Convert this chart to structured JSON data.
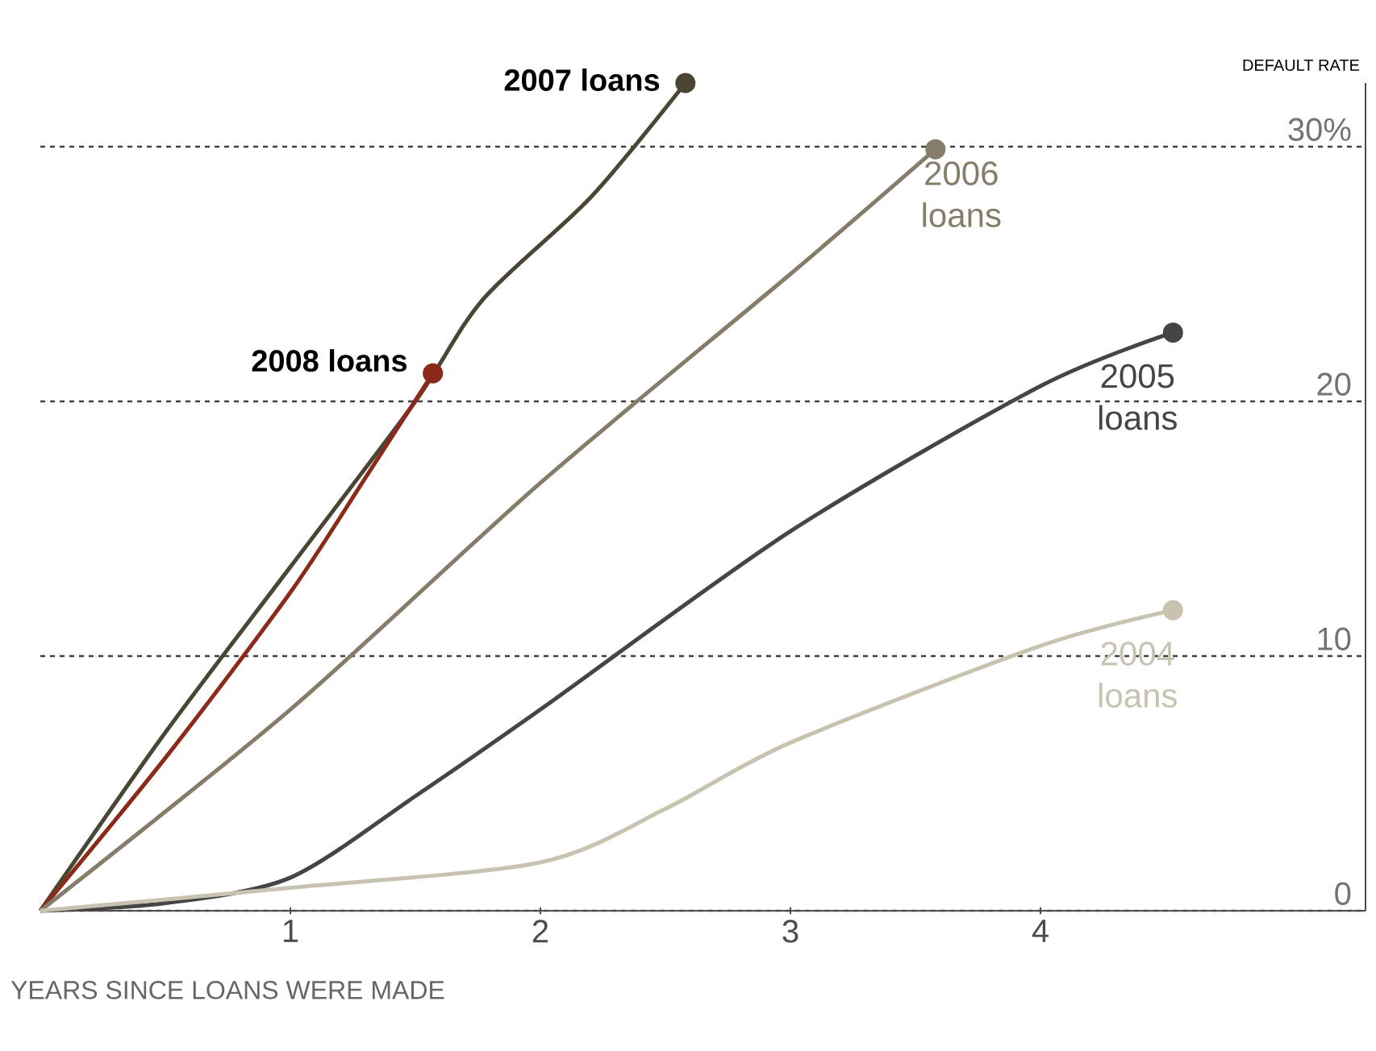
{
  "chart_data": {
    "type": "line",
    "ylabel": "DEFAULT RATE",
    "xlabel": "YEARS SINCE LOANS WERE MADE",
    "xlim": [
      0,
      5.3
    ],
    "ylim": [
      0,
      32.5
    ],
    "xticks": [
      1,
      2,
      3,
      4
    ],
    "yticks": [
      {
        "value": 0,
        "label": "0"
      },
      {
        "value": 10,
        "label": "10"
      },
      {
        "value": 20,
        "label": "20"
      },
      {
        "value": 30,
        "label": "30%"
      }
    ],
    "grid": "y",
    "legend": false,
    "line_style": "solid",
    "series": [
      {
        "name": "2007 loans",
        "color": "#4a4535",
        "x": [
          0,
          0.5,
          1,
          1.5,
          1.77,
          2.2,
          2.58
        ],
        "values": [
          0,
          7,
          13.5,
          20,
          24,
          28,
          32.5
        ]
      },
      {
        "name": "2008 loans",
        "color": "#8b2a1a",
        "x": [
          0,
          0.5,
          1,
          1.3,
          1.57
        ],
        "values": [
          0,
          6,
          12.5,
          17,
          21.1
        ]
      },
      {
        "name": "2006 loans",
        "color": "#857d6a",
        "x": [
          0,
          1,
          2,
          3,
          3.58
        ],
        "values": [
          0,
          7.9,
          16.8,
          25,
          29.9
        ]
      },
      {
        "name": "2005 loans",
        "color": "#454545",
        "x": [
          0,
          0.5,
          1,
          1.5,
          2,
          3,
          4,
          4.53
        ],
        "values": [
          0,
          0.3,
          1.3,
          4.5,
          7.9,
          14.9,
          20.6,
          22.7
        ]
      },
      {
        "name": "2004 loans",
        "color": "#c8c2b0",
        "x": [
          0,
          1,
          2,
          2.5,
          3,
          4,
          4.53
        ],
        "values": [
          0,
          0.9,
          1.9,
          4,
          6.6,
          10.4,
          11.8
        ]
      }
    ]
  }
}
